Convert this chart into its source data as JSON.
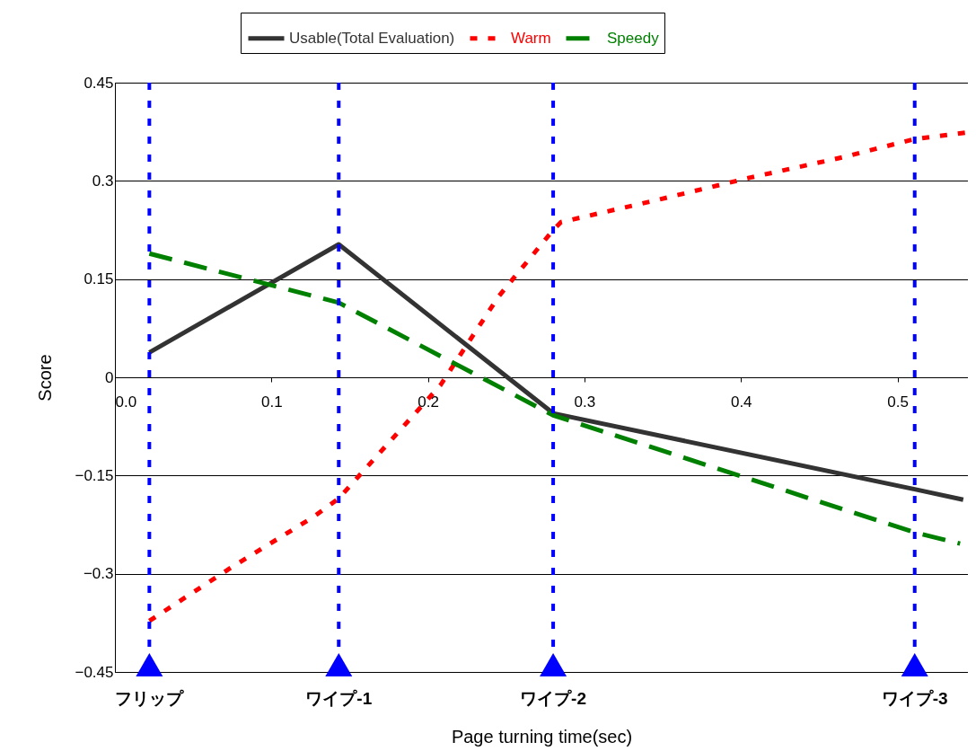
{
  "chart_data": {
    "type": "line",
    "xlabel": "Page turning time(sec)",
    "ylabel": "Score",
    "xlim": [
      0,
      0.545
    ],
    "xticks": [
      {
        "value": 0,
        "label": "0.0"
      },
      0.1,
      0.2,
      0.3,
      0.4,
      0.5
    ],
    "ylim": [
      -0.45,
      0.45
    ],
    "yticks": [
      -0.45,
      -0.3,
      -0.15,
      0,
      0.15,
      0.3,
      0.45
    ],
    "grid": "y",
    "legend": "top",
    "series": [
      {
        "name": "Usable(Total Evaluation)",
        "color": "#333333",
        "line_style": "solid",
        "x": [
          0.022,
          0.143,
          0.28,
          0.511,
          0.542
        ],
        "values": [
          0.038,
          0.203,
          -0.055,
          -0.171,
          -0.187
        ]
      },
      {
        "name": "Warm",
        "color": "#ff0000",
        "line_style": "dotted",
        "x": [
          0.022,
          0.074,
          0.127,
          0.143,
          0.208,
          0.245,
          0.28,
          0.285,
          0.345,
          0.406,
          0.465,
          0.511,
          0.545
        ],
        "values": [
          -0.372,
          -0.291,
          -0.213,
          -0.185,
          -0.012,
          0.123,
          0.225,
          0.237,
          0.27,
          0.305,
          0.336,
          0.364,
          0.374
        ]
      },
      {
        "name": "Speedy",
        "color": "#008000",
        "line_style": "dashed",
        "x": [
          0.022,
          0.143,
          0.28,
          0.511,
          0.54
        ],
        "values": [
          0.189,
          0.114,
          -0.058,
          -0.237,
          -0.254
        ]
      }
    ],
    "ref_lines": [
      {
        "axis": "x",
        "value": 0.022,
        "label": "フリップ",
        "color": "#0000ff",
        "line_style": "dotted"
      },
      {
        "axis": "x",
        "value": 0.143,
        "label": "ワイプ-1",
        "color": "#0000ff",
        "line_style": "dotted"
      },
      {
        "axis": "x",
        "value": 0.28,
        "label": "ワイプ-2",
        "color": "#0000ff",
        "line_style": "dotted"
      },
      {
        "axis": "x",
        "value": 0.511,
        "label": "ワイプ-3",
        "color": "#0000ff",
        "line_style": "dotted"
      }
    ]
  }
}
